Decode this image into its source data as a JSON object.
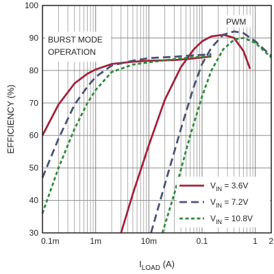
{
  "chart_data": {
    "type": "line",
    "title": "",
    "xlabel": "I",
    "xlabel_sub": "LOAD",
    "xlabel_unit": " (A)",
    "ylabel": "EFFICIENCY (%)",
    "x_scale": "log",
    "xlim": [
      0.1,
      2000
    ],
    "ylim": [
      30,
      100
    ],
    "grid": true,
    "legend_position": "bottom-right",
    "x_ticks": [
      {
        "value": 0.1,
        "label": "0.1m"
      },
      {
        "value": 1,
        "label": "1m"
      },
      {
        "value": 10,
        "label": "10m"
      },
      {
        "value": 100,
        "label": "0.1"
      },
      {
        "value": 1000,
        "label": "1"
      },
      {
        "value": 2000,
        "label": "2"
      }
    ],
    "y_ticks": [
      30,
      40,
      50,
      60,
      70,
      80,
      90,
      100
    ],
    "annotations": {
      "burst_line1": "BURST MODE",
      "burst_line2": "OPERATION",
      "pwm": "PWM"
    },
    "series": [
      {
        "name_main": "V",
        "name_sub": "IN",
        "name_value": " = 3.6V",
        "color": "#a3223a",
        "dash": "solid",
        "segments": [
          {
            "x": [
              0.1,
              0.2,
              0.4,
              0.7,
              1,
              2,
              5,
              10,
              30,
              60,
              100,
              150
            ],
            "y": [
              60,
              69.5,
              76,
              79,
              80.3,
              82,
              82.7,
              83,
              83.2,
              83.6,
              84,
              84.3
            ]
          },
          {
            "x": [
              3,
              5,
              10,
              20,
              40,
              70,
              100,
              150,
              250,
              400,
              600,
              800
            ],
            "y": [
              30,
              42,
              57,
              71,
              81,
              86.5,
              89,
              90.5,
              91,
              90,
              86,
              80.5
            ]
          }
        ]
      },
      {
        "name_main": "V",
        "name_sub": "IN",
        "name_value": " = 7.2V",
        "color": "#4a5275",
        "dash": "dashed",
        "segments": [
          {
            "x": [
              0.1,
              0.2,
              0.4,
              0.7,
              1,
              2,
              5,
              10,
              30,
              60,
              100,
              150
            ],
            "y": [
              47,
              59,
              69.5,
              75,
              78,
              81.5,
              83,
              83.8,
              84.2,
              84.6,
              84.8,
              85
            ]
          },
          {
            "x": [
              11,
              20,
              40,
              70,
              100,
              150,
              250,
              400,
              600,
              1000,
              2000
            ],
            "y": [
              30,
              45,
              62,
              75,
              82,
              87,
              91,
              92,
              91.5,
              89,
              84.5
            ]
          }
        ]
      },
      {
        "name_main": "V",
        "name_sub": "IN",
        "name_value": " = 10.8V",
        "color": "#2e8b3a",
        "dash": "dotted",
        "segments": [
          {
            "x": [
              0.1,
              0.2,
              0.4,
              0.7,
              1,
              2,
              5,
              10,
              30,
              60,
              100,
              150
            ],
            "y": [
              36,
              50,
              62,
              70,
              74,
              79.5,
              81.8,
              82.5,
              83.5,
              84,
              84.2,
              84.5
            ]
          },
          {
            "x": [
              18,
              30,
              60,
              100,
              150,
              250,
              400,
              600,
              1000,
              2000
            ],
            "y": [
              30,
              42,
              60,
              72,
              80,
              86.5,
              89.5,
              90,
              88.5,
              84
            ]
          }
        ]
      }
    ]
  }
}
